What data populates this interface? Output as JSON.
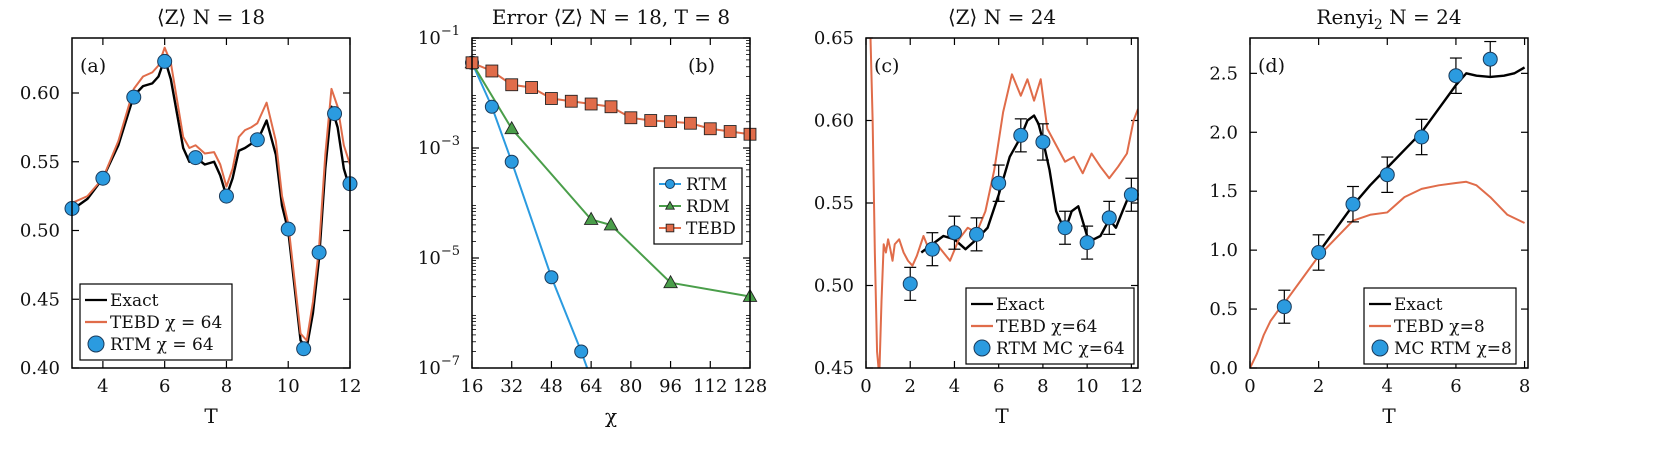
{
  "chart_data": [
    {
      "type": "line",
      "panel_label": "(a)",
      "title": "⟨Z⟩    N = 18",
      "xlabel": "T",
      "ylabel": "",
      "xlim": [
        3,
        12
      ],
      "ylim": [
        0.4,
        0.64
      ],
      "xticks": [
        4,
        6,
        8,
        10,
        12
      ],
      "yticks": [
        0.4,
        0.45,
        0.5,
        0.55,
        0.6
      ],
      "ytick_labels": [
        "0.40",
        "0.45",
        "0.50",
        "0.55",
        "0.60"
      ],
      "legend": {
        "position": "bottom-left",
        "entries": [
          "Exact",
          "TEBD χ = 64",
          "RTM χ = 64"
        ]
      },
      "colors": {
        "exact": "#000000",
        "tebd": "#e06c4a",
        "rtm": "#2b9be0"
      },
      "series": [
        {
          "name": "Exact",
          "style": "line",
          "x": [
            3.0,
            3.5,
            4.0,
            4.5,
            5.0,
            5.3,
            5.6,
            5.8,
            6.0,
            6.2,
            6.4,
            6.6,
            6.8,
            7.0,
            7.3,
            7.6,
            7.8,
            8.0,
            8.2,
            8.4,
            8.6,
            8.8,
            9.0,
            9.3,
            9.6,
            9.8,
            10.0,
            10.2,
            10.4,
            10.6,
            10.8,
            11.0,
            11.2,
            11.4,
            11.6,
            11.8,
            12.0
          ],
          "y": [
            0.515,
            0.523,
            0.538,
            0.562,
            0.598,
            0.605,
            0.607,
            0.612,
            0.625,
            0.61,
            0.585,
            0.56,
            0.55,
            0.553,
            0.548,
            0.55,
            0.54,
            0.525,
            0.538,
            0.558,
            0.56,
            0.563,
            0.565,
            0.58,
            0.555,
            0.518,
            0.5,
            0.46,
            0.42,
            0.415,
            0.44,
            0.48,
            0.545,
            0.59,
            0.575,
            0.545,
            0.53
          ]
        },
        {
          "name": "TEBD χ = 64",
          "style": "line",
          "x": [
            3.0,
            3.5,
            4.0,
            4.5,
            5.0,
            5.3,
            5.6,
            5.8,
            6.0,
            6.2,
            6.4,
            6.6,
            6.8,
            7.0,
            7.3,
            7.6,
            7.8,
            8.0,
            8.2,
            8.4,
            8.6,
            8.8,
            9.0,
            9.3,
            9.6,
            9.8,
            10.0,
            10.2,
            10.4,
            10.6,
            10.8,
            11.0,
            11.2,
            11.4,
            11.6,
            11.8,
            12.0
          ],
          "y": [
            0.52,
            0.525,
            0.538,
            0.565,
            0.603,
            0.612,
            0.615,
            0.62,
            0.633,
            0.622,
            0.595,
            0.568,
            0.56,
            0.562,
            0.556,
            0.557,
            0.548,
            0.532,
            0.545,
            0.568,
            0.573,
            0.575,
            0.578,
            0.593,
            0.565,
            0.525,
            0.505,
            0.465,
            0.425,
            0.42,
            0.448,
            0.488,
            0.555,
            0.603,
            0.59,
            0.562,
            0.548
          ]
        },
        {
          "name": "RTM χ = 64",
          "style": "markers",
          "x": [
            3,
            4,
            5,
            6,
            7,
            8,
            9,
            10,
            10.5,
            11,
            11.5,
            12
          ],
          "y": [
            0.516,
            0.538,
            0.597,
            0.623,
            0.553,
            0.525,
            0.566,
            0.501,
            0.414,
            0.484,
            0.585,
            0.534
          ]
        }
      ]
    },
    {
      "type": "line",
      "panel_label": "(b)",
      "title": "Error ⟨Z⟩    N = 18,  T = 8",
      "xlabel": "χ",
      "ylabel": "",
      "yscale": "log",
      "xlim": [
        16,
        128
      ],
      "ylim_log10": [
        -7,
        -1
      ],
      "xticks": [
        16,
        32,
        48,
        64,
        80,
        96,
        112,
        128
      ],
      "yticks_log10": [
        -7,
        -5,
        -3,
        -1
      ],
      "ytick_labels": [
        "10",
        "10",
        "10",
        "10"
      ],
      "ytick_exponents": [
        "−7",
        "−5",
        "−3",
        "−1"
      ],
      "legend": {
        "position": "center-right",
        "entries": [
          "RTM",
          "RDM",
          "TEBD"
        ]
      },
      "colors": {
        "rtm": "#2b9be0",
        "rdm": "#4a9e4a",
        "tebd": "#e06c4a"
      },
      "series": [
        {
          "name": "RTM",
          "marker": "circle",
          "x": [
            16,
            24,
            32,
            48,
            60
          ],
          "log10_y": [
            -1.45,
            -2.25,
            -3.25,
            -5.35,
            -6.7
          ],
          "line_extends_to": [
            64,
            -7.2
          ]
        },
        {
          "name": "RDM",
          "marker": "triangle",
          "x": [
            16,
            32,
            64,
            72,
            96,
            128
          ],
          "log10_y": [
            -1.45,
            -2.65,
            -4.3,
            -4.4,
            -5.45,
            -5.7
          ]
        },
        {
          "name": "TEBD",
          "marker": "square",
          "x": [
            16,
            24,
            32,
            40,
            48,
            56,
            64,
            72,
            80,
            88,
            96,
            104,
            112,
            120,
            128
          ],
          "log10_y": [
            -1.45,
            -1.6,
            -1.85,
            -1.9,
            -2.1,
            -2.15,
            -2.2,
            -2.25,
            -2.45,
            -2.5,
            -2.52,
            -2.55,
            -2.65,
            -2.7,
            -2.75
          ]
        }
      ]
    },
    {
      "type": "line",
      "panel_label": "(c)",
      "title": "⟨Z⟩    N = 24",
      "xlabel": "T",
      "ylabel": "",
      "xlim": [
        0,
        12.3
      ],
      "ylim": [
        0.45,
        0.65
      ],
      "xticks": [
        0,
        2,
        4,
        6,
        8,
        10,
        12
      ],
      "yticks": [
        0.45,
        0.5,
        0.55,
        0.6,
        0.65
      ],
      "ytick_labels": [
        "0.45",
        "0.50",
        "0.55",
        "0.60",
        "0.65"
      ],
      "legend": {
        "position": "bottom-right",
        "entries": [
          "Exact",
          "TEBD χ=64",
          "RTM MC χ=64"
        ]
      },
      "colors": {
        "exact": "#000000",
        "tebd": "#e06c4a",
        "rtm": "#2b9be0"
      },
      "series": [
        {
          "name": "Exact",
          "style": "line",
          "x": [
            2.5,
            3.0,
            3.5,
            4.0,
            4.5,
            5.0,
            5.5,
            6.0,
            6.5,
            7.0,
            7.3,
            7.6,
            7.8,
            8.0,
            8.3,
            8.6,
            9.0,
            9.3,
            9.6,
            10.0,
            10.3,
            10.6,
            11.0,
            11.3,
            11.6,
            12.0,
            12.3
          ],
          "y": [
            0.52,
            0.525,
            0.53,
            0.528,
            0.522,
            0.528,
            0.535,
            0.555,
            0.578,
            0.59,
            0.6,
            0.603,
            0.598,
            0.588,
            0.57,
            0.545,
            0.533,
            0.545,
            0.548,
            0.53,
            0.528,
            0.53,
            0.54,
            0.535,
            0.545,
            0.558,
            0.552
          ]
        },
        {
          "name": "TEBD χ=64",
          "style": "line",
          "x": [
            0.2,
            0.3,
            0.4,
            0.5,
            0.6,
            0.7,
            0.8,
            0.9,
            1.0,
            1.1,
            1.2,
            1.3,
            1.5,
            1.7,
            1.9,
            2.1,
            2.3,
            2.6,
            2.9,
            3.2,
            3.5,
            3.8,
            4.2,
            4.6,
            5.0,
            5.4,
            5.8,
            6.2,
            6.6,
            7.0,
            7.3,
            7.6,
            7.9,
            8.2,
            8.6,
            9.0,
            9.4,
            9.8,
            10.2,
            10.6,
            11.0,
            11.4,
            11.8,
            12.1,
            12.3
          ],
          "y": [
            0.652,
            0.6,
            0.52,
            0.46,
            0.445,
            0.49,
            0.525,
            0.52,
            0.528,
            0.522,
            0.515,
            0.525,
            0.528,
            0.52,
            0.515,
            0.512,
            0.518,
            0.53,
            0.52,
            0.525,
            0.52,
            0.515,
            0.528,
            0.535,
            0.532,
            0.545,
            0.57,
            0.605,
            0.628,
            0.615,
            0.625,
            0.612,
            0.625,
            0.595,
            0.585,
            0.575,
            0.578,
            0.568,
            0.58,
            0.572,
            0.565,
            0.572,
            0.58,
            0.6,
            0.607
          ]
        },
        {
          "name": "RTM MC χ=64",
          "style": "markers-errorbars",
          "x": [
            2,
            3,
            4,
            5,
            6,
            7,
            8,
            9,
            10,
            11,
            12
          ],
          "y": [
            0.501,
            0.522,
            0.532,
            0.531,
            0.562,
            0.591,
            0.587,
            0.535,
            0.526,
            0.541,
            0.555
          ],
          "err": [
            0.01,
            0.01,
            0.01,
            0.01,
            0.011,
            0.01,
            0.011,
            0.01,
            0.01,
            0.01,
            0.01
          ]
        }
      ]
    },
    {
      "type": "line",
      "panel_label": "(d)",
      "title": "Renyi",
      "title_subscript": "2",
      "title_suffix": "    N = 24",
      "xlabel": "T",
      "ylabel": "",
      "xlim": [
        0,
        8.1
      ],
      "ylim": [
        0,
        2.8
      ],
      "xticks": [
        0,
        2,
        4,
        6,
        8
      ],
      "yticks": [
        0,
        0.5,
        1.0,
        1.5,
        2.0,
        2.5
      ],
      "ytick_labels": [
        "0.0",
        "0.5",
        "1.0",
        "1.5",
        "2.0",
        "2.5"
      ],
      "legend": {
        "position": "bottom-right",
        "entries": [
          "Exact",
          "TEBD χ=8",
          "MC RTM χ=8"
        ]
      },
      "colors": {
        "exact": "#000000",
        "tebd": "#e06c4a",
        "rtm": "#2b9be0"
      },
      "series": [
        {
          "name": "Exact",
          "style": "line",
          "x": [
            2.0,
            2.5,
            3.0,
            3.5,
            4.0,
            4.5,
            5.0,
            5.5,
            6.0,
            6.3,
            6.6,
            7.0,
            7.4,
            7.7,
            8.0
          ],
          "y": [
            0.98,
            1.18,
            1.38,
            1.55,
            1.7,
            1.85,
            2.0,
            2.2,
            2.4,
            2.5,
            2.48,
            2.47,
            2.48,
            2.5,
            2.55
          ]
        },
        {
          "name": "TEBD χ=8",
          "style": "line",
          "x": [
            0.0,
            0.2,
            0.4,
            0.6,
            0.8,
            1.0,
            1.5,
            2.0,
            2.5,
            3.0,
            3.5,
            4.0,
            4.5,
            5.0,
            5.5,
            6.0,
            6.3,
            6.6,
            7.0,
            7.5,
            8.0
          ],
          "y": [
            0.0,
            0.12,
            0.28,
            0.4,
            0.48,
            0.55,
            0.75,
            0.95,
            1.1,
            1.25,
            1.3,
            1.32,
            1.45,
            1.52,
            1.55,
            1.57,
            1.58,
            1.55,
            1.45,
            1.3,
            1.23
          ]
        },
        {
          "name": "MC RTM χ=8",
          "style": "markers-errorbars",
          "x": [
            1,
            2,
            3,
            4,
            5,
            6,
            7
          ],
          "y": [
            0.52,
            0.98,
            1.39,
            1.64,
            1.96,
            2.48,
            2.62
          ],
          "err": [
            0.14,
            0.15,
            0.15,
            0.15,
            0.15,
            0.15,
            0.15
          ]
        }
      ]
    }
  ]
}
